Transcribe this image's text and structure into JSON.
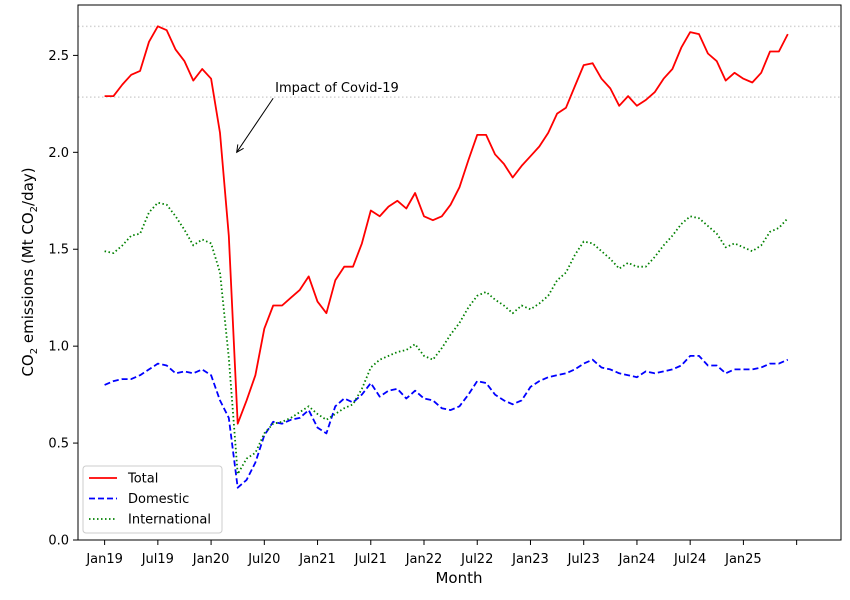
{
  "chart_data": {
    "type": "line",
    "xlabel": "Month",
    "ylabel_prefix": "CO",
    "ylabel_sub": "2",
    "ylabel_mid": " emissions (Mt CO",
    "ylabel_sub2": "2",
    "ylabel_suffix": "/day)",
    "x_tick_labels": [
      "Jan19",
      "Jul19",
      "Jan20",
      "Jul20",
      "Jan21",
      "Jul21",
      "Jan22",
      "Jul22",
      "Jan23",
      "Jul23",
      "Jan24",
      "Jul24",
      "Jan25"
    ],
    "y_ticks": [
      0.0,
      0.5,
      1.0,
      1.5,
      2.0,
      2.5
    ],
    "y_tick_labels": [
      "0.0",
      "0.5",
      "1.0",
      "1.5",
      "2.0",
      "2.5"
    ],
    "ylim": [
      0,
      2.76
    ],
    "xlim": [
      -3,
      83
    ],
    "start_month": "2019-01",
    "reference_lines": [
      2.65,
      2.285
    ],
    "annotation": {
      "text": "Impact of Covid-19",
      "arrow_tip": [
        "2020-04",
        2.0
      ],
      "text_at": [
        "2020-08",
        2.31
      ]
    },
    "legend_position": "lower-left",
    "series": [
      {
        "name": "Total",
        "color": "#ff0000",
        "style": "solid",
        "values": [
          2.29,
          2.29,
          2.35,
          2.4,
          2.42,
          2.57,
          2.65,
          2.63,
          2.53,
          2.47,
          2.37,
          2.43,
          2.38,
          2.1,
          1.57,
          0.6,
          0.72,
          0.85,
          1.09,
          1.21,
          1.21,
          1.25,
          1.29,
          1.36,
          1.23,
          1.17,
          1.34,
          1.41,
          1.41,
          1.53,
          1.7,
          1.67,
          1.72,
          1.75,
          1.71,
          1.79,
          1.67,
          1.65,
          1.67,
          1.73,
          1.82,
          1.96,
          2.09,
          2.09,
          1.99,
          1.94,
          1.87,
          1.93,
          1.98,
          2.03,
          2.1,
          2.2,
          2.23,
          2.34,
          2.45,
          2.46,
          2.38,
          2.33,
          2.24,
          2.29,
          2.24,
          2.27,
          2.31,
          2.38,
          2.43,
          2.54,
          2.62,
          2.61,
          2.51,
          2.47,
          2.37,
          2.41,
          2.38,
          2.36,
          2.41,
          2.52,
          2.52,
          2.61
        ]
      },
      {
        "name": "Domestic",
        "color": "#0000ff",
        "style": "dashed",
        "values": [
          0.8,
          0.82,
          0.83,
          0.83,
          0.85,
          0.88,
          0.91,
          0.9,
          0.86,
          0.87,
          0.86,
          0.88,
          0.85,
          0.72,
          0.63,
          0.27,
          0.31,
          0.4,
          0.54,
          0.61,
          0.6,
          0.62,
          0.63,
          0.67,
          0.58,
          0.55,
          0.69,
          0.73,
          0.71,
          0.75,
          0.81,
          0.74,
          0.77,
          0.78,
          0.73,
          0.77,
          0.73,
          0.72,
          0.68,
          0.67,
          0.69,
          0.75,
          0.82,
          0.81,
          0.75,
          0.72,
          0.7,
          0.72,
          0.79,
          0.82,
          0.84,
          0.85,
          0.86,
          0.88,
          0.91,
          0.93,
          0.89,
          0.88,
          0.86,
          0.85,
          0.84,
          0.87,
          0.86,
          0.87,
          0.88,
          0.9,
          0.95,
          0.95,
          0.9,
          0.9,
          0.86,
          0.88,
          0.88,
          0.88,
          0.89,
          0.91,
          0.91,
          0.93
        ]
      },
      {
        "name": "International",
        "color": "#008000",
        "style": "dotted",
        "values": [
          1.49,
          1.48,
          1.52,
          1.57,
          1.58,
          1.69,
          1.74,
          1.73,
          1.67,
          1.6,
          1.52,
          1.55,
          1.53,
          1.38,
          0.94,
          0.34,
          0.42,
          0.45,
          0.55,
          0.6,
          0.61,
          0.63,
          0.66,
          0.69,
          0.65,
          0.62,
          0.65,
          0.68,
          0.7,
          0.78,
          0.89,
          0.93,
          0.95,
          0.97,
          0.98,
          1.01,
          0.95,
          0.93,
          0.99,
          1.06,
          1.12,
          1.2,
          1.26,
          1.28,
          1.24,
          1.21,
          1.17,
          1.21,
          1.19,
          1.22,
          1.26,
          1.34,
          1.38,
          1.47,
          1.54,
          1.53,
          1.49,
          1.45,
          1.4,
          1.43,
          1.41,
          1.41,
          1.46,
          1.52,
          1.57,
          1.63,
          1.67,
          1.66,
          1.62,
          1.58,
          1.51,
          1.53,
          1.51,
          1.49,
          1.52,
          1.59,
          1.61,
          1.66
        ]
      }
    ]
  }
}
